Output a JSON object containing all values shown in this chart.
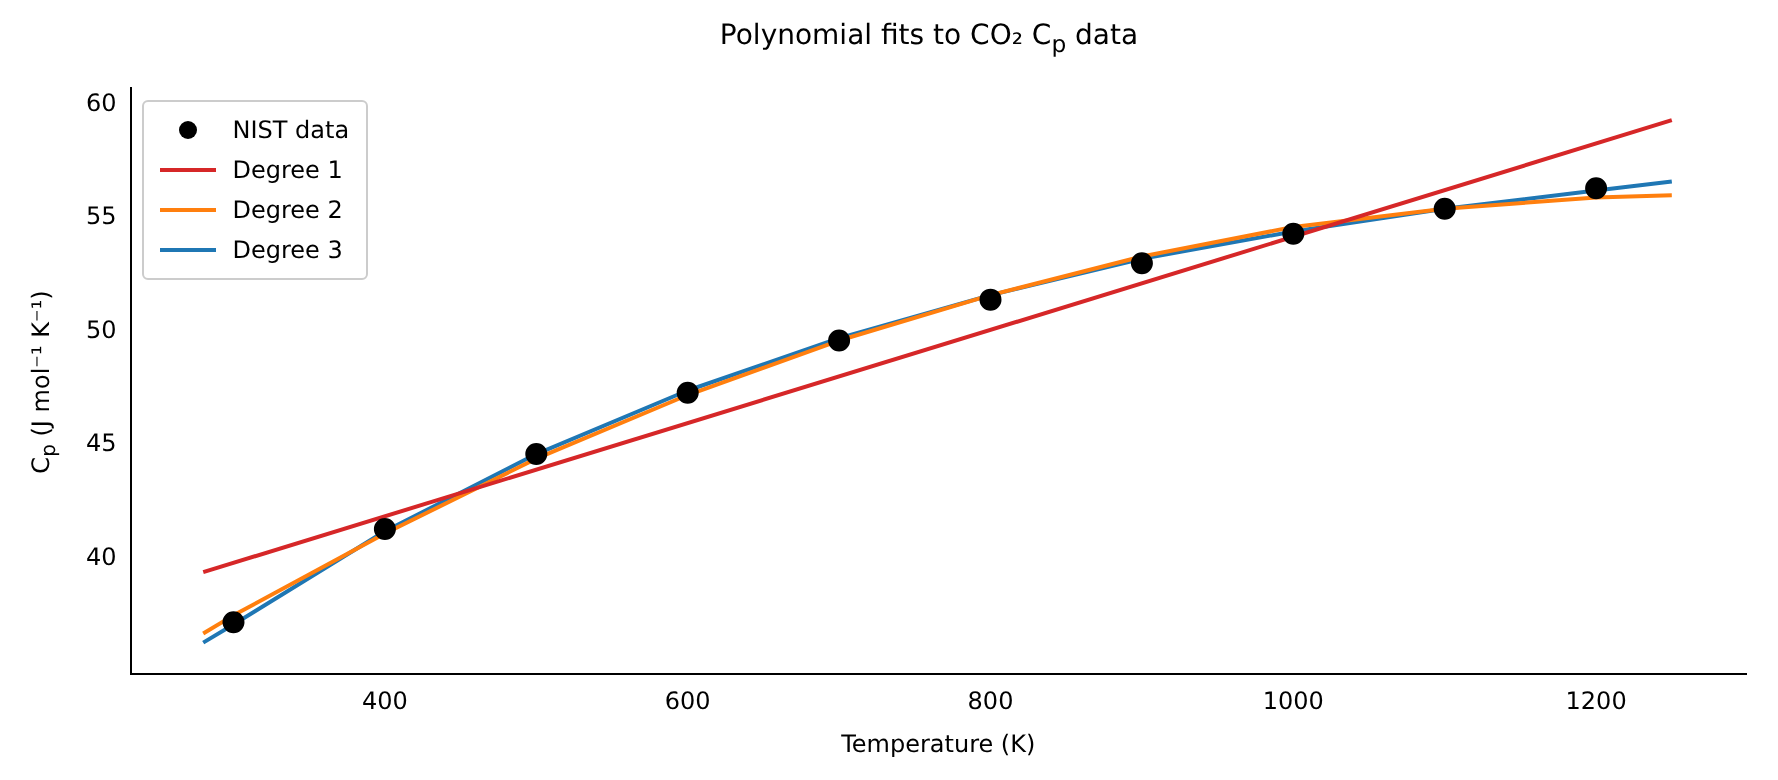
{
  "chart_data": {
    "type": "line",
    "title": "Polynomial fits to CO₂ C$_{p}$ data",
    "xlabel": "Temperature (K)",
    "ylabel": "C$_{p}$ (J mol⁻¹ K⁻¹)",
    "xlim": [
      232,
      1299
    ],
    "ylim": [
      34.9,
      60.7
    ],
    "xticks": [
      400,
      600,
      800,
      1000,
      1200
    ],
    "yticks": [
      40,
      45,
      50,
      55,
      60
    ],
    "grid": false,
    "legend": "top left",
    "series": [
      {
        "name": "NIST data",
        "type": "scatter",
        "marker": "circle",
        "color": "#000000",
        "x": [
          300,
          400,
          500,
          600,
          700,
          800,
          900,
          1000,
          1100,
          1200
        ],
        "values": [
          37.2,
          41.3,
          44.6,
          47.3,
          49.6,
          51.4,
          53.0,
          54.3,
          55.4,
          56.3
        ]
      },
      {
        "name": "Degree 1",
        "type": "line",
        "marker": "none",
        "line_style": "solid",
        "color": "#d62728",
        "x": [
          280,
          1250
        ],
        "values": [
          39.4,
          59.3
        ]
      },
      {
        "name": "Degree 2",
        "type": "line",
        "marker": "none",
        "line_style": "solid",
        "color": "#ff7f0e",
        "x": [
          280,
          300,
          400,
          500,
          600,
          700,
          800,
          900,
          1000,
          1100,
          1200,
          1250
        ],
        "values": [
          36.7,
          37.5,
          41.1,
          44.4,
          47.2,
          49.6,
          51.6,
          53.3,
          54.6,
          55.4,
          55.9,
          56.0
        ]
      },
      {
        "name": "Degree 3",
        "type": "line",
        "marker": "none",
        "line_style": "solid",
        "color": "#1f77b4",
        "x": [
          280,
          300,
          400,
          500,
          600,
          700,
          800,
          900,
          1000,
          1100,
          1200,
          1250
        ],
        "values": [
          36.3,
          37.1,
          41.2,
          44.6,
          47.4,
          49.7,
          51.6,
          53.2,
          54.4,
          55.4,
          56.2,
          56.6
        ]
      }
    ]
  }
}
